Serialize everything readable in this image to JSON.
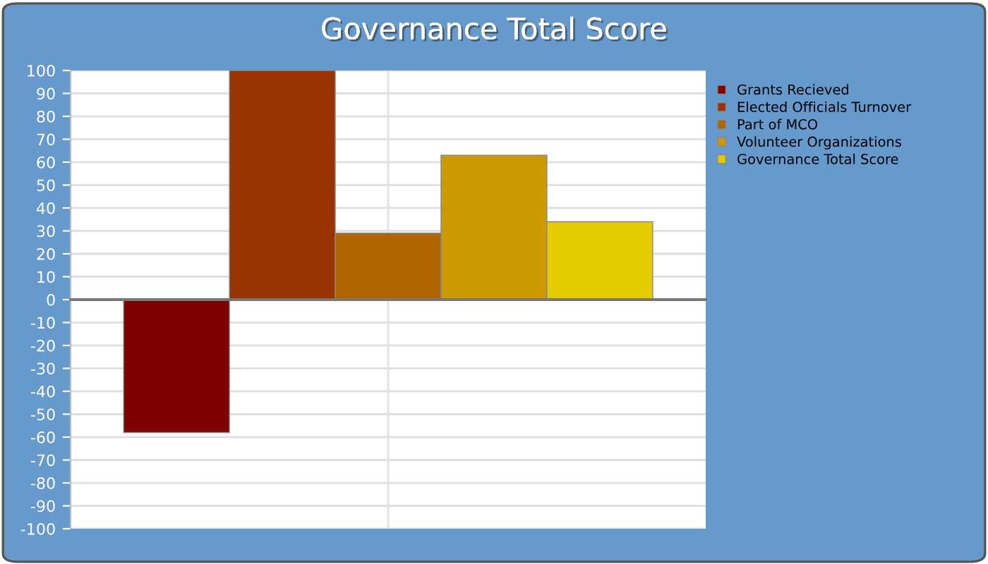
{
  "chart_data": {
    "type": "bar",
    "title": "Governance Total Score",
    "categories": [
      null
    ],
    "series": [
      {
        "name": "Grants Recieved",
        "color": "#800000",
        "values": [
          -58
        ]
      },
      {
        "name": "Elected Officials Turnover",
        "color": "#993300",
        "values": [
          100
        ]
      },
      {
        "name": "Part of MCO",
        "color": "#b06600",
        "values": [
          29
        ]
      },
      {
        "name": "Volunteer Organizations",
        "color": "#cc9900",
        "values": [
          63
        ]
      },
      {
        "name": "Governance Total Score",
        "color": "#e3cb00",
        "values": [
          34
        ]
      }
    ],
    "ylim": [
      -100,
      100
    ],
    "yticks": [
      -100,
      -90,
      -80,
      -70,
      -60,
      -50,
      -40,
      -30,
      -20,
      -10,
      0,
      10,
      20,
      30,
      40,
      50,
      60,
      70,
      80,
      90,
      100
    ],
    "grid": true,
    "legend": "right"
  }
}
